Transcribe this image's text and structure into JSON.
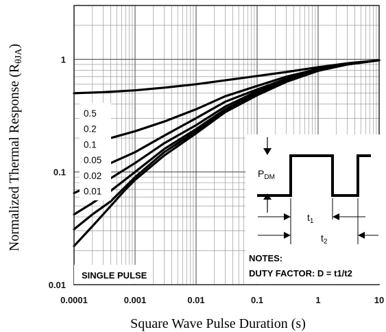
{
  "chart_data": {
    "type": "line",
    "xscale": "log",
    "yscale": "log",
    "xlim": [
      0.0001,
      10
    ],
    "ylim": [
      0.01,
      3
    ],
    "grid": true,
    "xlabel": "Square Wave Pulse Duration (s)",
    "ylabel_main": "Normalized Thermal Response (R",
    "ylabel_sub": "θJA",
    "ylabel_end": ")",
    "xticks": [
      {
        "value": 0.0001,
        "label": "0.0001"
      },
      {
        "value": 0.001,
        "label": "0.001"
      },
      {
        "value": 0.01,
        "label": "0.01"
      },
      {
        "value": 0.1,
        "label": "0.1"
      },
      {
        "value": 1,
        "label": "1"
      },
      {
        "value": 10,
        "label": "10"
      }
    ],
    "yticks": [
      {
        "value": 0.01,
        "label": "0.01"
      },
      {
        "value": 0.1,
        "label": "0.1"
      },
      {
        "value": 1,
        "label": "1"
      }
    ],
    "series": [
      {
        "name": "0.5",
        "x": [
          0.0001,
          0.0003,
          0.001,
          0.003,
          0.01,
          0.03,
          0.1,
          0.3,
          1,
          3,
          10
        ],
        "y": [
          0.5,
          0.51,
          0.53,
          0.56,
          0.6,
          0.65,
          0.71,
          0.77,
          0.85,
          0.92,
          0.98
        ]
      },
      {
        "name": "0.2",
        "x": [
          0.0004,
          0.001,
          0.003,
          0.01,
          0.03,
          0.1,
          0.3,
          1,
          3,
          10
        ],
        "y": [
          0.2,
          0.23,
          0.28,
          0.36,
          0.47,
          0.58,
          0.7,
          0.82,
          0.91,
          0.98
        ]
      },
      {
        "name": "0.1",
        "x": [
          0.0004,
          0.001,
          0.003,
          0.01,
          0.03,
          0.1,
          0.3,
          1,
          3,
          10
        ],
        "y": [
          0.12,
          0.15,
          0.21,
          0.3,
          0.42,
          0.54,
          0.67,
          0.81,
          0.91,
          0.98
        ]
      },
      {
        "name": "0.05",
        "x": [
          0.0004,
          0.001,
          0.003,
          0.01,
          0.03,
          0.1,
          0.3,
          1,
          3,
          10
        ],
        "y": [
          0.088,
          0.12,
          0.18,
          0.26,
          0.38,
          0.52,
          0.66,
          0.8,
          0.9,
          0.98
        ]
      },
      {
        "name": "0.02",
        "x": [
          0.0004,
          0.001,
          0.003,
          0.01,
          0.03,
          0.1,
          0.3,
          1,
          3,
          10
        ],
        "y": [
          0.068,
          0.1,
          0.16,
          0.24,
          0.36,
          0.5,
          0.65,
          0.8,
          0.9,
          0.98
        ]
      },
      {
        "name": "0.01",
        "x": [
          0.0004,
          0.001,
          0.003,
          0.01,
          0.03,
          0.1,
          0.3,
          1,
          3,
          10
        ],
        "y": [
          0.055,
          0.09,
          0.15,
          0.23,
          0.35,
          0.49,
          0.64,
          0.79,
          0.9,
          0.98
        ]
      },
      {
        "name": "SINGLE PULSE",
        "x": [
          0.0001,
          0.0002,
          0.0004,
          0.0007,
          0.001,
          0.003,
          0.01,
          0.03,
          0.1,
          0.3,
          1,
          3,
          10
        ],
        "y": [
          0.022,
          0.033,
          0.05,
          0.07,
          0.085,
          0.14,
          0.22,
          0.34,
          0.48,
          0.63,
          0.79,
          0.9,
          0.98
        ]
      }
    ],
    "low_end_curves": [
      {
        "x": [
          0.0001,
          0.0002,
          0.0004
        ],
        "y": [
          0.065,
          0.077,
          0.088
        ]
      },
      {
        "x": [
          0.0001,
          0.0002,
          0.0004
        ],
        "y": [
          0.042,
          0.053,
          0.068
        ]
      },
      {
        "x": [
          0.0001,
          0.0002,
          0.0004
        ],
        "y": [
          0.031,
          0.042,
          0.055
        ]
      }
    ],
    "curve_labels": [
      "0.5",
      "0.2",
      "0.1",
      "0.05",
      "0.02",
      "0.01"
    ],
    "single_pulse_label": "SINGLE PULSE",
    "notes": {
      "title": "NOTES:",
      "text": "DUTY FACTOR: D = t1/t2",
      "pdm_main": "P",
      "pdm_sub": "DM",
      "t1_main": "t",
      "t1_sub": "1",
      "t2_main": "t",
      "t2_sub": "2"
    },
    "colors": {
      "curve": "#000000",
      "grid": "#8a8a8a",
      "major_grid": "#555555",
      "background": "#ffffff"
    }
  }
}
